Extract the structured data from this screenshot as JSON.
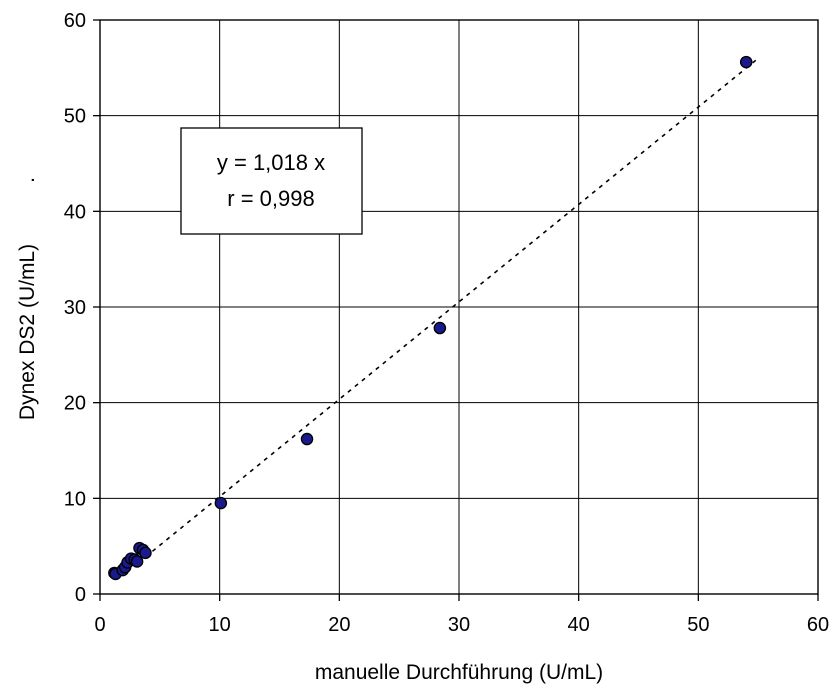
{
  "chart_data": {
    "type": "scatter",
    "title": "",
    "xlabel": "manuelle Durchführung (U/mL)",
    "ylabel": "Dynex DS2 (U/mL)",
    "ylabel_suffix": ".",
    "xlim": [
      0,
      60
    ],
    "ylim": [
      0,
      60
    ],
    "xticks": [
      0,
      10,
      20,
      30,
      40,
      50,
      60
    ],
    "yticks": [
      0,
      10,
      20,
      30,
      40,
      50,
      60
    ],
    "grid": true,
    "legend": "none",
    "series": [
      {
        "marker_color": "#1a1a8c",
        "points": [
          {
            "x": 1.2,
            "y": 2.2
          },
          {
            "x": 1.3,
            "y": 2.1
          },
          {
            "x": 1.9,
            "y": 2.5
          },
          {
            "x": 2.1,
            "y": 2.8
          },
          {
            "x": 2.3,
            "y": 3.3
          },
          {
            "x": 2.6,
            "y": 3.7
          },
          {
            "x": 2.9,
            "y": 3.6
          },
          {
            "x": 3.1,
            "y": 3.4
          },
          {
            "x": 3.3,
            "y": 4.8
          },
          {
            "x": 3.6,
            "y": 4.6
          },
          {
            "x": 3.8,
            "y": 4.3
          },
          {
            "x": 10.1,
            "y": 9.5
          },
          {
            "x": 17.3,
            "y": 16.2
          },
          {
            "x": 28.4,
            "y": 27.8
          },
          {
            "x": 54.0,
            "y": 55.6
          }
        ]
      }
    ],
    "trendline": {
      "style": "dotted",
      "slope": 1.018,
      "x_start": 3.8,
      "x_end": 54.8
    },
    "annotation": {
      "lines": [
        "y = 1,018 x",
        "r = 0,998"
      ],
      "anchor": "upper-left"
    }
  }
}
